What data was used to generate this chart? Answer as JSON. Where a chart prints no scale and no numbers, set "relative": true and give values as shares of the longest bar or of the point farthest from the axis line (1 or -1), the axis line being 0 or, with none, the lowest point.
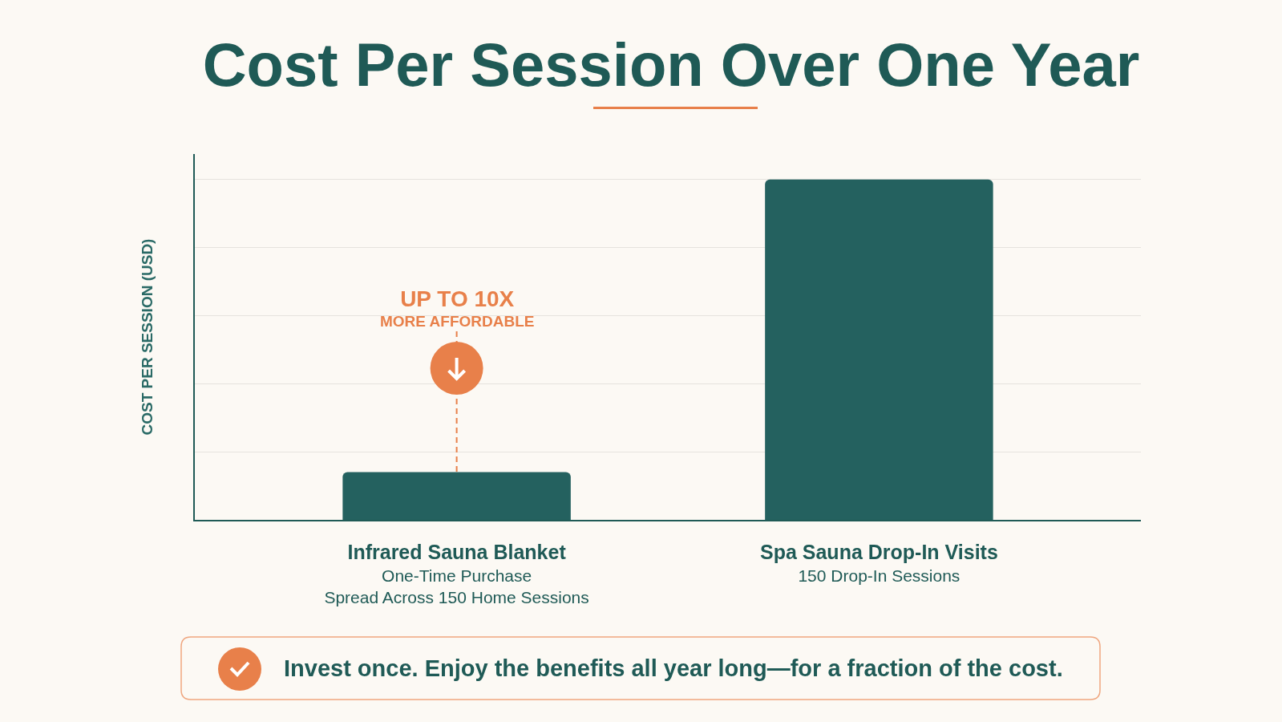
{
  "chart_data": {
    "type": "bar",
    "title": "Cost Per Session Over One Year",
    "ylabel": "COST PER SESSION (USD)",
    "categories": [
      "Infrared Sauna Blanket\nOne-Time Purchase\nSpread Across 150 Home Sessions",
      "Spa Sauna Drop-In Visits\n150 Drop-In Sessions"
    ],
    "values": [
      0.14,
      1
    ],
    "color": "#24615f",
    "relative": true,
    "grid": "y",
    "annotations": [
      {
        "text": "UP TO 10X\nMORE AFFORDABLE",
        "x": "Infrared Sauna Blanket\nOne-Time Purchase\nSpread Across 150 Home Sessions",
        "y": 0.14
      },
      "Invest once. Enjoy the benefits all year long—for a fraction of the cost."
    ]
  }
}
